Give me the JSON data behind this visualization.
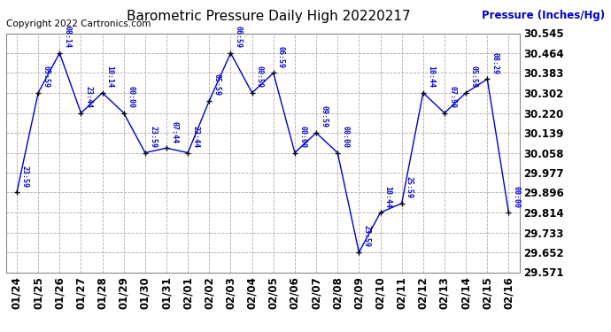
{
  "title": "Barometric Pressure Daily High 20220217",
  "ylabel": "Pressure (Inches/Hg)",
  "copyright": "Copyright 2022 Cartronics.com",
  "dates": [
    "01/24",
    "01/25",
    "01/26",
    "01/27",
    "01/28",
    "01/29",
    "01/30",
    "01/31",
    "02/01",
    "02/02",
    "02/03",
    "02/04",
    "02/05",
    "02/06",
    "02/07",
    "02/08",
    "02/09",
    "02/10",
    "02/11",
    "02/12",
    "02/13",
    "02/14",
    "02/15",
    "02/16"
  ],
  "values": [
    29.896,
    30.302,
    30.464,
    30.22,
    30.302,
    30.22,
    30.058,
    30.077,
    30.058,
    30.27,
    30.464,
    30.302,
    30.383,
    30.058,
    30.139,
    30.058,
    29.652,
    29.814,
    29.852,
    30.302,
    30.22,
    30.302,
    30.358,
    29.814
  ],
  "annotations": [
    "23:59",
    "05:59",
    "08:14",
    "23:44",
    "10:14",
    "00:00",
    "23:59",
    "07:44",
    "23:44",
    "05:59",
    "06:59",
    "00:59",
    "06:59",
    "00:00",
    "09:59",
    "00:00",
    "23:59",
    "10:44",
    "25:59",
    "10:44",
    "07:59",
    "05:59",
    "08:29",
    "00:00"
  ],
  "ylim_min": 29.571,
  "ylim_max": 30.545,
  "yticks": [
    29.571,
    29.652,
    29.733,
    29.814,
    29.896,
    29.977,
    30.058,
    30.139,
    30.22,
    30.302,
    30.383,
    30.464,
    30.545
  ],
  "line_color": "#0000cc",
  "marker_color": "#000000",
  "grid_color": "#aaaaaa",
  "bg_color": "#ffffff",
  "title_color": "#000000",
  "ylabel_color": "#0000cc",
  "copyright_color": "#000000",
  "annotation_color": "#0000cc",
  "tick_label_color": "#000000",
  "tick_label_fontsize": 8.5,
  "annotation_fontsize": 6.0,
  "title_fontsize": 11.0,
  "copyright_fontsize": 7.5
}
